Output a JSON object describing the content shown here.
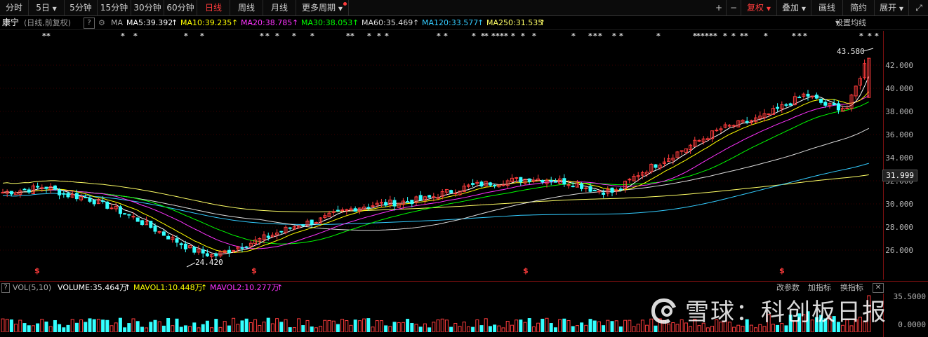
{
  "toolbar": {
    "periods": [
      "分时",
      "5日",
      "5分钟",
      "15分钟",
      "30分钟",
      "60分钟",
      "日线",
      "周线",
      "月线",
      "更多周期"
    ],
    "right": [
      "+",
      "−",
      "复权",
      "叠加",
      "画线",
      "简约",
      "展开"
    ],
    "active": "日线"
  },
  "info": {
    "stock_name": "康宁",
    "mode": "(日线,前复权)",
    "help": "?",
    "ma_label": "MA",
    "ma5": "MA5:39.392",
    "ma10": "MA10:39.235",
    "ma20": "MA20:38.785",
    "ma30": "MA30:38.053",
    "ma60": "MA60:35.469",
    "ma120": "MA120:33.577",
    "ma250": "MA250:31.535",
    "settings": "设置均线"
  },
  "colors": {
    "ma5": "#ffffff",
    "ma10": "#ffff00",
    "ma20": "#ff33ff",
    "ma30": "#00ff00",
    "ma60": "#dddddd",
    "ma120": "#33ccff",
    "ma250": "#ffff66",
    "up": "#ff3c3c",
    "down": "#33ffff"
  },
  "chart": {
    "y_ticks": [
      "42.000",
      "40.000",
      "38.000",
      "36.000",
      "34.000",
      "32.000",
      "30.000",
      "28.000",
      "26.000"
    ],
    "current_price": "31.999",
    "high_label": "43.580",
    "low_label": "24.420",
    "event_marker": "$"
  },
  "volume": {
    "label": "VOL(5,10)",
    "volume": "VOLUME:35.464万",
    "mavol1": "MAVOL1:10.448万",
    "mavol2": "MAVOL2:10.277万",
    "right": [
      "改参数",
      "加指标",
      "换指标"
    ],
    "y_ticks": [
      "35.5000",
      "0.0000"
    ]
  },
  "watermark": "雪球：科创板日报",
  "chart_data": {
    "type": "candlestick",
    "title": "康宁 (日线,前复权)",
    "ylim": [
      24,
      44
    ],
    "annotations": [
      {
        "label": "43.580",
        "type": "high"
      },
      {
        "label": "24.420",
        "type": "low"
      }
    ],
    "close_path_approx": [
      31.0,
      31.2,
      31.5,
      30.8,
      30.5,
      29.8,
      29.0,
      28.0,
      27.0,
      26.0,
      25.5,
      26.2,
      26.8,
      27.5,
      28.2,
      28.6,
      29.3,
      29.8,
      30.0,
      30.2,
      30.4,
      31.0,
      31.5,
      31.8,
      32.0,
      32.2,
      32.1,
      31.8,
      31.2,
      31.0,
      32.5,
      33.5,
      34.5,
      35.5,
      36.5,
      37.0,
      37.5,
      38.5,
      39.5,
      38.5,
      38.3,
      43.0
    ]
  }
}
